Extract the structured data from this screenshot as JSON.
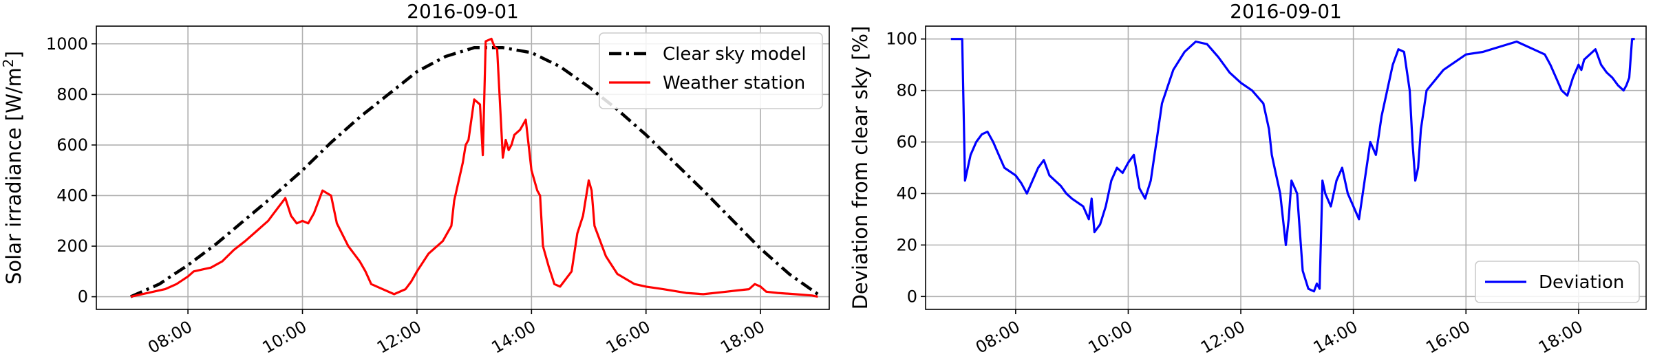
{
  "chart_data": [
    {
      "type": "line",
      "title": "2016-09-01",
      "xlabel": "",
      "ylabel": "Solar irradiance [W/m²]",
      "ylabel_main": "Solar irradiance [W/m",
      "ylabel_sup": "2",
      "ylabel_end": "]",
      "xlim": [
        6.4,
        19.2
      ],
      "ylim": [
        -50,
        1070
      ],
      "x_ticks": [
        8,
        10,
        12,
        14,
        16,
        18
      ],
      "x_tick_labels": [
        "08:00",
        "10:00",
        "12:00",
        "14:00",
        "16:00",
        "18:00"
      ],
      "y_ticks": [
        0,
        200,
        400,
        600,
        800,
        1000
      ],
      "y_tick_labels": [
        "0",
        "200",
        "400",
        "600",
        "800",
        "1000"
      ],
      "grid": true,
      "legend_position": "top-right",
      "series": [
        {
          "name": "Clear sky model",
          "color": "#000000",
          "style": "dashdot",
          "x": [
            7.0,
            7.5,
            8.0,
            8.5,
            9.0,
            9.5,
            10.0,
            10.5,
            11.0,
            11.5,
            12.0,
            12.5,
            13.0,
            13.5,
            14.0,
            14.5,
            15.0,
            15.5,
            16.0,
            16.5,
            17.0,
            17.5,
            18.0,
            18.5,
            19.0
          ],
          "values": [
            0,
            50,
            125,
            210,
            305,
            400,
            500,
            610,
            710,
            800,
            890,
            950,
            985,
            985,
            965,
            910,
            830,
            740,
            640,
            530,
            420,
            305,
            190,
            90,
            10
          ]
        },
        {
          "name": "Weather station",
          "color": "#ff0000",
          "style": "solid",
          "x": [
            7.0,
            7.3,
            7.6,
            7.8,
            8.0,
            8.1,
            8.3,
            8.4,
            8.6,
            8.8,
            9.0,
            9.2,
            9.4,
            9.5,
            9.7,
            9.8,
            9.9,
            10.0,
            10.1,
            10.2,
            10.35,
            10.5,
            10.6,
            10.8,
            10.9,
            11.0,
            11.1,
            11.2,
            11.4,
            11.6,
            11.8,
            11.9,
            12.0,
            12.2,
            12.35,
            12.45,
            12.6,
            12.65,
            12.8,
            12.85,
            12.9,
            13.0,
            13.1,
            13.15,
            13.2,
            13.3,
            13.35,
            13.4,
            13.5,
            13.55,
            13.6,
            13.65,
            13.7,
            13.8,
            13.85,
            13.9,
            14.0,
            14.1,
            14.15,
            14.2,
            14.3,
            14.4,
            14.5,
            14.7,
            14.8,
            14.9,
            15.0,
            15.05,
            15.1,
            15.2,
            15.3,
            15.5,
            15.8,
            16.0,
            16.3,
            16.7,
            17.0,
            17.4,
            17.6,
            17.8,
            17.9,
            18.0,
            18.1,
            18.3,
            18.6,
            18.9,
            19.0
          ],
          "values": [
            0,
            15,
            30,
            50,
            80,
            100,
            110,
            115,
            140,
            185,
            220,
            260,
            300,
            330,
            390,
            320,
            290,
            300,
            290,
            330,
            420,
            400,
            290,
            200,
            170,
            140,
            100,
            50,
            30,
            10,
            30,
            60,
            100,
            170,
            200,
            220,
            280,
            380,
            530,
            600,
            620,
            780,
            760,
            560,
            1010,
            1020,
            990,
            980,
            550,
            620,
            580,
            600,
            640,
            660,
            680,
            700,
            500,
            420,
            400,
            200,
            120,
            50,
            40,
            100,
            250,
            320,
            460,
            420,
            280,
            220,
            160,
            90,
            50,
            40,
            30,
            15,
            10,
            20,
            25,
            30,
            50,
            40,
            20,
            15,
            10,
            5,
            0
          ]
        }
      ]
    },
    {
      "type": "line",
      "title": "2016-09-01",
      "xlabel": "",
      "ylabel": "Deviation from clear sky [%]",
      "xlim": [
        6.4,
        19.2
      ],
      "ylim": [
        -5,
        105
      ],
      "x_ticks": [
        8,
        10,
        12,
        14,
        16,
        18
      ],
      "x_tick_labels": [
        "08:00",
        "10:00",
        "12:00",
        "14:00",
        "16:00",
        "18:00"
      ],
      "y_ticks": [
        0,
        20,
        40,
        60,
        80,
        100
      ],
      "y_tick_labels": [
        "0",
        "20",
        "40",
        "60",
        "80",
        "100"
      ],
      "grid": true,
      "legend_position": "bottom-right",
      "series": [
        {
          "name": "Deviation",
          "color": "#0000ff",
          "style": "solid",
          "x": [
            6.85,
            7.05,
            7.1,
            7.15,
            7.2,
            7.3,
            7.4,
            7.5,
            7.6,
            7.7,
            7.8,
            8.0,
            8.1,
            8.2,
            8.3,
            8.4,
            8.5,
            8.6,
            8.7,
            8.8,
            8.9,
            9.0,
            9.2,
            9.3,
            9.35,
            9.4,
            9.5,
            9.6,
            9.7,
            9.8,
            9.9,
            10.0,
            10.1,
            10.2,
            10.3,
            10.4,
            10.5,
            10.6,
            10.8,
            11.0,
            11.2,
            11.4,
            11.6,
            11.8,
            12.0,
            12.2,
            12.4,
            12.5,
            12.55,
            12.6,
            12.7,
            12.8,
            12.85,
            12.9,
            13.0,
            13.1,
            13.2,
            13.3,
            13.35,
            13.4,
            13.45,
            13.5,
            13.6,
            13.7,
            13.8,
            13.9,
            14.0,
            14.1,
            14.2,
            14.3,
            14.4,
            14.5,
            14.7,
            14.8,
            14.9,
            15.0,
            15.05,
            15.1,
            15.15,
            15.2,
            15.3,
            15.6,
            16.0,
            16.3,
            16.6,
            16.9,
            17.2,
            17.4,
            17.5,
            17.6,
            17.7,
            17.8,
            17.9,
            18.0,
            18.05,
            18.1,
            18.3,
            18.4,
            18.5,
            18.6,
            18.7,
            18.8,
            18.85,
            18.9,
            18.95,
            19.0
          ],
          "values": [
            100,
            100,
            45,
            50,
            55,
            60,
            63,
            64,
            60,
            55,
            50,
            47,
            44,
            40,
            45,
            50,
            53,
            47,
            45,
            43,
            40,
            38,
            35,
            30,
            38,
            25,
            28,
            35,
            45,
            50,
            48,
            52,
            55,
            42,
            38,
            45,
            60,
            75,
            88,
            95,
            99,
            98,
            93,
            87,
            83,
            80,
            75,
            65,
            55,
            50,
            40,
            20,
            30,
            45,
            40,
            10,
            3,
            2,
            5,
            3,
            45,
            40,
            35,
            45,
            50,
            40,
            35,
            30,
            45,
            60,
            55,
            70,
            90,
            96,
            95,
            80,
            60,
            45,
            50,
            65,
            80,
            88,
            94,
            95,
            97,
            99,
            96,
            94,
            90,
            85,
            80,
            78,
            85,
            90,
            88,
            92,
            96,
            90,
            87,
            85,
            82,
            80,
            82,
            85,
            100,
            100
          ]
        }
      ]
    }
  ]
}
